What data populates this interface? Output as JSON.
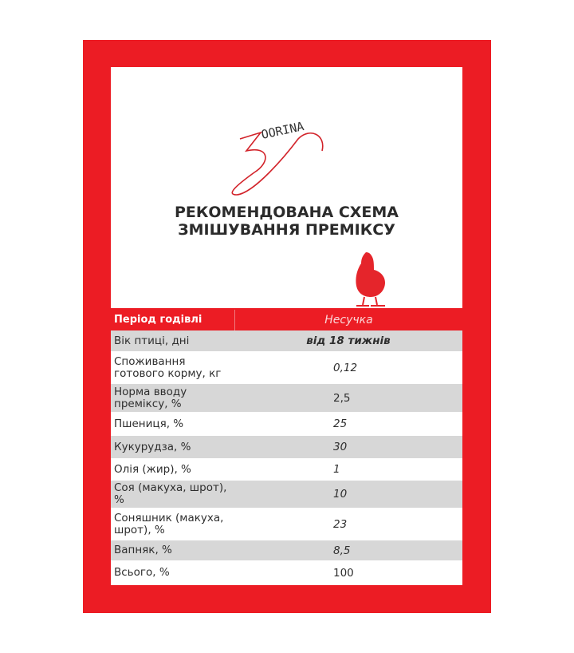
{
  "logo_text": "ZOORINA",
  "title_line1": "РЕКОМЕНДОВАНА СХЕМА",
  "title_line2": "ЗМІШУВАННЯ ПРЕМІКСУ",
  "colors": {
    "brand_red": "#ec1c24",
    "row_gray": "#d7d7d7",
    "text": "#2e2e2e"
  },
  "table": {
    "header": {
      "label": "Період годівлі",
      "value": "Несучка"
    },
    "rows": [
      {
        "label": "Вік птиці, дні",
        "value": "від 18 тижнів"
      },
      {
        "label": "Споживання готового корму, кг",
        "value": "0,12"
      },
      {
        "label": "Норма вводу преміксу, %",
        "value": "2,5"
      },
      {
        "label": "Пшениця, %",
        "value": "25"
      },
      {
        "label": "Кукурудза, %",
        "value": "30"
      },
      {
        "label": "Олія (жир), %",
        "value": "1"
      },
      {
        "label": "Соя (макуха, шрот), %",
        "value": "10"
      },
      {
        "label": "Соняшник (макуха, шрот), %",
        "value": "23"
      },
      {
        "label": "Вапняк, %",
        "value": "8,5"
      },
      {
        "label": "Всього, %",
        "value": "100"
      }
    ]
  }
}
